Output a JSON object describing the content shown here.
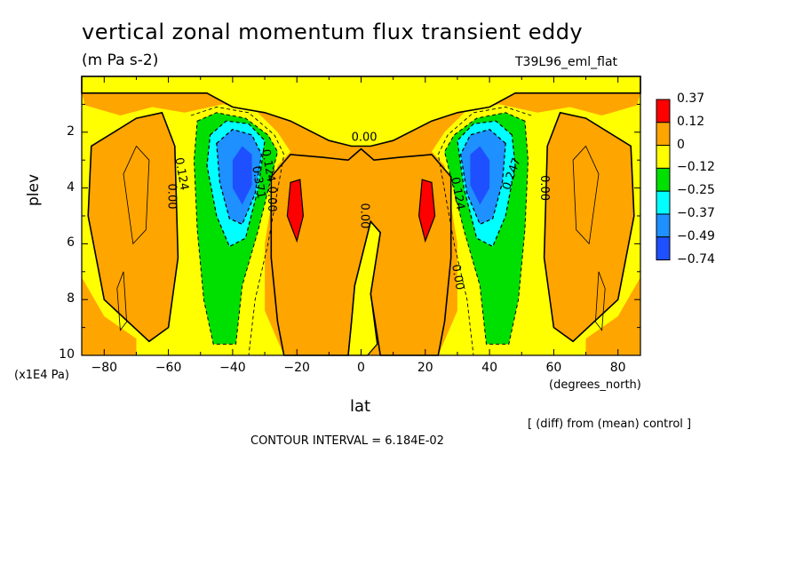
{
  "chart_data": {
    "type": "heatmap",
    "title": "vertical zonal momentum flux transient eddy",
    "units": "(m Pa s-2)",
    "run_label": "T39L96_eml_flat",
    "xlabel": "lat",
    "xunits": "(degrees_north)",
    "ylabel": "plev",
    "yunits": "(x1E4 Pa)",
    "xlim": [
      -87,
      87
    ],
    "ylim": [
      0,
      10
    ],
    "y_inverted": true,
    "x_ticks": [
      -80,
      -60,
      -40,
      -20,
      0,
      20,
      40,
      60,
      80
    ],
    "x_tick_labels": [
      "−80",
      "−60",
      "−40",
      "−20",
      "0",
      "20",
      "40",
      "60",
      "80"
    ],
    "y_ticks": [
      2,
      4,
      6,
      8,
      10
    ],
    "y_tick_labels": [
      "2",
      "4",
      "6",
      "8",
      "10"
    ],
    "note": "[ (diff) from (mean) control ]",
    "contour_interval_text": "CONTOUR INTERVAL = 6.184E-02",
    "colorbar": {
      "levels": [
        "0.37",
        "0.12",
        "0",
        "−0.12",
        "−0.25",
        "−0.37",
        "−0.49",
        "−0.74"
      ],
      "colors": [
        "#ff0000",
        "#ffa500",
        "#ffff00",
        "#00e000",
        "#00ffff",
        "#1e90ff",
        "#1e50ff"
      ]
    },
    "contour_labels": [
      {
        "text": "0.00",
        "lat": 1,
        "p": 2.2,
        "rot": 0
      },
      {
        "text": "0.124",
        "lat": -56,
        "p": 3.5,
        "rot": 80
      },
      {
        "text": "0.00",
        "lat": -59,
        "p": 4.3,
        "rot": 90
      },
      {
        "text": "0.371",
        "lat": -32,
        "p": 3.8,
        "rot": 80
      },
      {
        "text": "0.124",
        "lat": -29,
        "p": 3.2,
        "rot": 80
      },
      {
        "text": "0.00",
        "lat": -28,
        "p": 4.4,
        "rot": 90
      },
      {
        "text": "0.00",
        "lat": 1,
        "p": 5.0,
        "rot": 90
      },
      {
        "text": "0.124",
        "lat": 30,
        "p": 4.2,
        "rot": 80
      },
      {
        "text": "0.247",
        "lat": 47,
        "p": 3.5,
        "rot": -70
      },
      {
        "text": "0.00",
        "lat": 57,
        "p": 4.0,
        "rot": 90
      },
      {
        "text": "0.00",
        "lat": 30,
        "p": 7.2,
        "rot": 80
      }
    ]
  }
}
